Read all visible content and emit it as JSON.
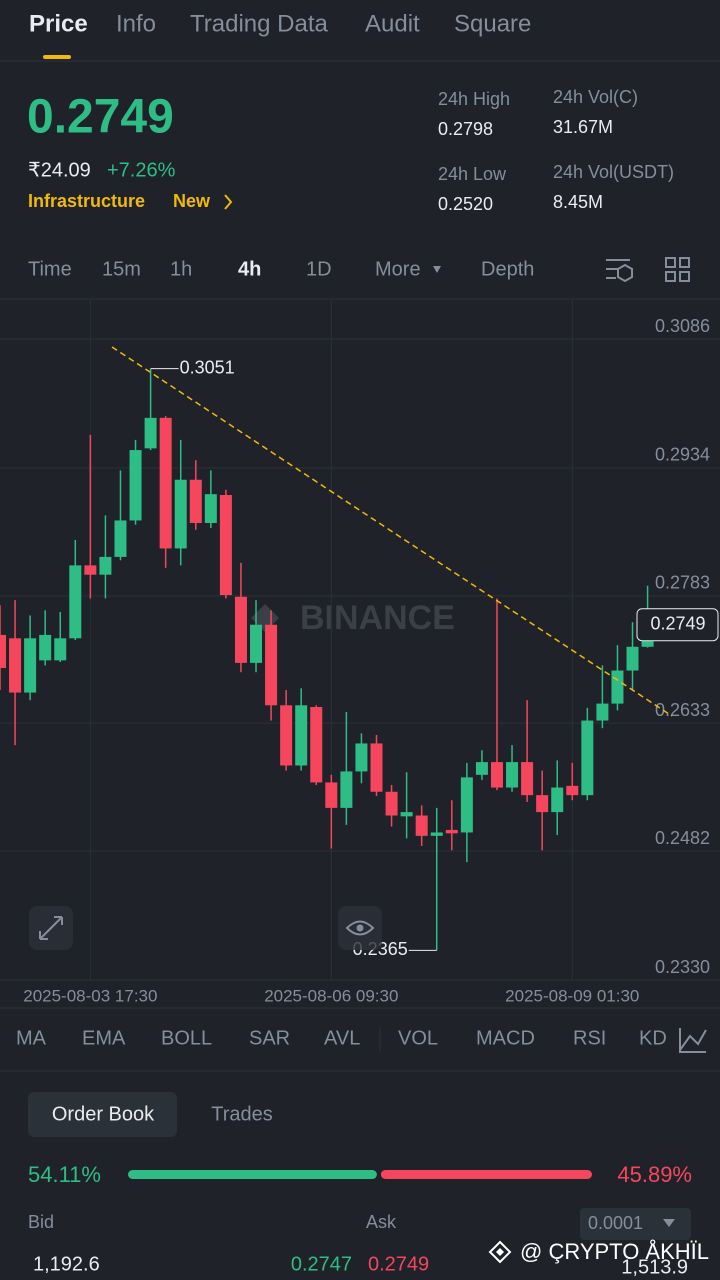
{
  "tabs": [
    "Price",
    "Info",
    "Trading Data",
    "Audit",
    "Square"
  ],
  "header": {
    "price": "0.2749",
    "fiat_price": "₹24.09",
    "change": "+7.26%",
    "tags": [
      "Infrastructure",
      "New"
    ]
  },
  "stats": [
    {
      "label": "24h High",
      "value": "0.2798"
    },
    {
      "label": "24h Vol(C)",
      "value": "31.67M"
    },
    {
      "label": "24h Low",
      "value": "0.2520"
    },
    {
      "label": "24h Vol(USDT)",
      "value": "8.45M"
    }
  ],
  "timeframes": [
    "Time",
    "15m",
    "1h",
    "4h",
    "1D",
    "More",
    "Depth"
  ],
  "chart_data": {
    "type": "candlestick",
    "watermark": "BINANCE",
    "categories": [
      null,
      null,
      null,
      null,
      null,
      null,
      "2025-08-03 17:30",
      null,
      null,
      null,
      null,
      null,
      null,
      null,
      null,
      null,
      null,
      null,
      null,
      null,
      null,
      null,
      "2025-08-06 09:30",
      null,
      null,
      null,
      null,
      null,
      null,
      null,
      null,
      null,
      null,
      null,
      null,
      null,
      null,
      null,
      "2025-08-09 01:30",
      null,
      null,
      null,
      null,
      null
    ],
    "open": [
      0.2737,
      0.2733,
      0.2669,
      0.2707,
      0.2707,
      0.2733,
      0.2819,
      0.2808,
      0.2829,
      0.2872,
      0.2957,
      0.2993,
      0.2839,
      0.292,
      0.2869,
      0.2902,
      0.2782,
      0.2704,
      0.2749,
      0.2654,
      0.2583,
      0.2652,
      0.2563,
      0.2533,
      0.2576,
      0.2609,
      0.2552,
      0.2523,
      0.2524,
      0.25,
      0.2507,
      0.2504,
      0.2572,
      0.2587,
      0.2557,
      0.2587,
      0.2548,
      0.2528,
      0.2559,
      0.2548,
      0.2636,
      0.2656,
      0.2695,
      0.2723
    ],
    "high": [
      0.2772,
      0.2778,
      0.276,
      0.2766,
      0.2764,
      0.2849,
      0.2973,
      0.2878,
      0.2931,
      0.2967,
      0.3051,
      0.2995,
      0.2967,
      0.2943,
      0.2931,
      0.2908,
      0.2822,
      0.2778,
      0.2766,
      0.2672,
      0.2674,
      0.2654,
      0.2572,
      0.2646,
      0.2621,
      0.2619,
      0.256,
      0.2575,
      0.2536,
      0.2533,
      0.2542,
      0.2586,
      0.2601,
      0.278,
      0.2607,
      0.266,
      0.2577,
      0.2589,
      0.2586,
      0.2651,
      0.2701,
      0.2725,
      0.2752,
      0.2795
    ],
    "low": [
      0.2672,
      0.2607,
      0.266,
      0.2701,
      0.2705,
      0.2731,
      0.278,
      0.278,
      0.2825,
      0.2867,
      0.2955,
      0.2816,
      0.2819,
      0.2861,
      0.2863,
      0.278,
      0.2693,
      0.2693,
      0.2636,
      0.2577,
      0.2577,
      0.256,
      0.2485,
      0.2513,
      0.2562,
      0.2547,
      0.2511,
      0.2497,
      0.2488,
      0.2365,
      0.2483,
      0.2469,
      0.2566,
      0.2554,
      0.2552,
      0.254,
      0.2483,
      0.2501,
      0.2542,
      0.2542,
      0.2627,
      0.2648,
      0.2672,
      0.2722
    ],
    "close": [
      0.2698,
      0.2669,
      0.2733,
      0.2737,
      0.2733,
      0.2819,
      0.2808,
      0.2829,
      0.2872,
      0.2955,
      0.2993,
      0.2839,
      0.292,
      0.2869,
      0.2903,
      0.2784,
      0.2704,
      0.2749,
      0.2654,
      0.2583,
      0.2654,
      0.2563,
      0.2533,
      0.2576,
      0.2609,
      0.2552,
      0.2524,
      0.2528,
      0.25,
      0.2504,
      0.2503,
      0.2569,
      0.2587,
      0.2557,
      0.2587,
      0.2548,
      0.2528,
      0.2557,
      0.2548,
      0.2636,
      0.2656,
      0.2695,
      0.2723,
      0.2749
    ],
    "up_color": "#2ebd85",
    "down_color": "#f6465d",
    "max_label": 0.3051,
    "min_label": 0.2365,
    "last_price": 0.2749,
    "ylim": [
      0.233,
      0.3132
    ],
    "yticks": [
      0.3086,
      0.2934,
      0.2783,
      0.2633,
      0.2482,
      {
        "value": 0.233,
        "label": "0.2330"
      }
    ],
    "grid": true
  },
  "indicators": [
    "MA",
    "EMA",
    "BOLL",
    "SAR",
    "AVL",
    "VOL",
    "MACD",
    "RSI",
    "KD"
  ],
  "order_book": {
    "tabs": [
      "Order Book",
      "Trades"
    ],
    "buy_percent": {
      "value": 54.11,
      "label": "54.11%"
    },
    "sell_percent": {
      "value": 45.89,
      "label": "45.89%"
    },
    "bid_header": "Bid",
    "ask_header": "Ask",
    "precision": "0.0001",
    "row": {
      "bid_amount": "1,192.6",
      "bid_price": "0.2747",
      "ask_price": "0.2749",
      "ask_amount": "1,513.9"
    }
  },
  "watermark": "@ ÇRYPTO ÅKHÏL"
}
